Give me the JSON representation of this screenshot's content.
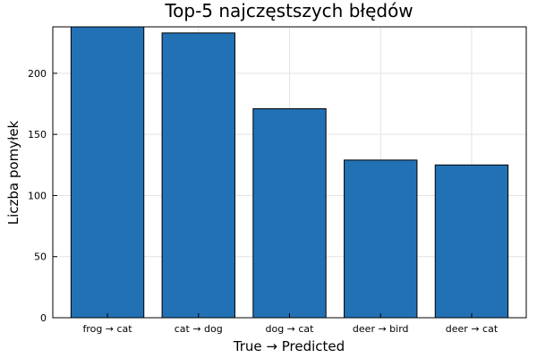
{
  "chart_data": {
    "type": "bar",
    "title": "Top-5 najczęstszych błędów",
    "xlabel": "True → Predicted",
    "ylabel": "Liczba pomyłek",
    "categories": [
      "frog → cat",
      "cat → dog",
      "dog → cat",
      "deer → bird",
      "deer → cat"
    ],
    "values": [
      238,
      233,
      171,
      129,
      125
    ],
    "ylim": [
      0,
      238
    ],
    "yticks": [
      0,
      50,
      100,
      150,
      200
    ],
    "grid": true,
    "bar_color": "#2271b5"
  }
}
